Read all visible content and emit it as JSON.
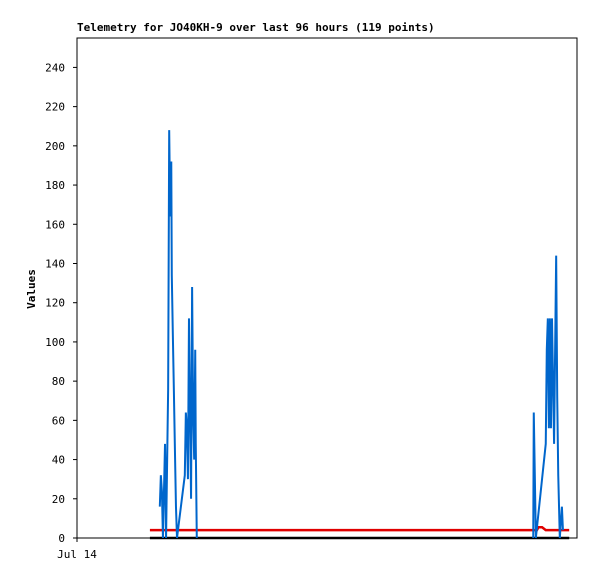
{
  "chart_data": {
    "type": "line",
    "title": "Telemetry for JO40KH-9 over last 96 hours (119 points)",
    "y_label": "Values",
    "xlim": [
      0,
      96
    ],
    "xticks": [
      {
        "value": 0,
        "label": "Jul 14"
      }
    ],
    "ylim": [
      0,
      255
    ],
    "yticks": [
      0,
      20,
      40,
      60,
      80,
      100,
      120,
      140,
      160,
      180,
      200,
      220,
      240
    ],
    "series": [
      {
        "color": "#000000",
        "x": [
          14,
          94.5
        ],
        "values": [
          0,
          0
        ]
      },
      {
        "color": "#e00000",
        "x": [
          14,
          88.3,
          88.6,
          89.3,
          90,
          94.5
        ],
        "values": [
          4,
          4,
          5.5,
          5.5,
          4,
          4
        ]
      },
      {
        "color": "#0066cc",
        "x": [
          15.9,
          16.1,
          16.3,
          16.5,
          16.9,
          17.1,
          17.5,
          17.7,
          17.9,
          18.1,
          18.2,
          18.4,
          18.6,
          18.8,
          19.0,
          19.2,
          20.7,
          20.9,
          21.1,
          21.3,
          21.5,
          21.7,
          21.9,
          22.1,
          22.3,
          22.5,
          22.7,
          22.8,
          23.0,
          50,
          87.6,
          87.7,
          87.9,
          88.1,
          90.0,
          90.2,
          90.4,
          90.6,
          90.8,
          91.0,
          91.2,
          91.6,
          92.0,
          92.2,
          92.4,
          92.7,
          93.1,
          93.3
        ],
        "values": [
          16,
          32,
          24,
          0,
          48,
          0,
          76,
          208,
          164,
          192,
          134,
          104,
          75,
          45,
          16,
          0,
          32,
          64,
          56,
          30,
          112,
          64,
          20,
          128,
          64,
          40,
          96,
          48,
          0,
          null,
          0,
          64,
          32,
          0,
          48,
          96,
          112,
          56,
          112,
          56,
          112,
          48,
          144,
          72,
          32,
          0,
          16,
          4
        ]
      }
    ]
  }
}
